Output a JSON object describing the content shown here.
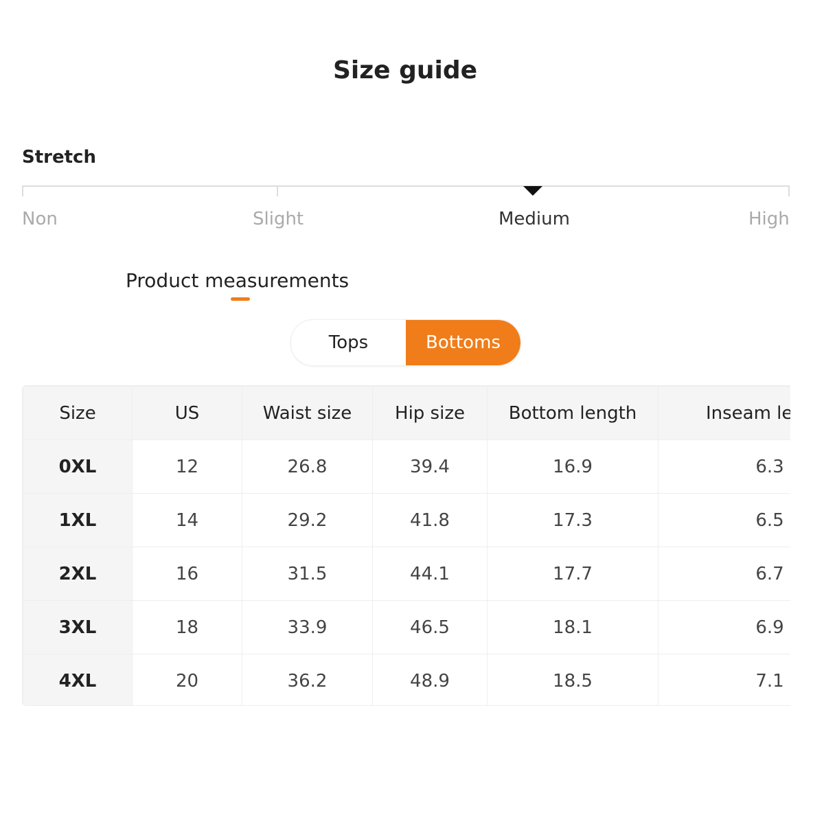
{
  "title": "Size guide",
  "stretch": {
    "label": "Stretch",
    "levels": [
      "Non",
      "Slight",
      "Medium",
      "High"
    ],
    "selected": "Medium",
    "selected_index": 2
  },
  "section": {
    "title": "Product measurements",
    "accent_color": "#f07d1a"
  },
  "tabs": [
    {
      "label": "Tops",
      "active": false
    },
    {
      "label": "Bottoms",
      "active": true
    }
  ],
  "table": {
    "headers": [
      "Size",
      "US",
      "Waist size",
      "Hip size",
      "Bottom length",
      "Inseam length"
    ],
    "rows": [
      [
        "0XL",
        "12",
        "26.8",
        "39.4",
        "16.9",
        "6.3"
      ],
      [
        "1XL",
        "14",
        "29.2",
        "41.8",
        "17.3",
        "6.5"
      ],
      [
        "2XL",
        "16",
        "31.5",
        "44.1",
        "17.7",
        "6.7"
      ],
      [
        "3XL",
        "18",
        "33.9",
        "46.5",
        "18.1",
        "6.9"
      ],
      [
        "4XL",
        "20",
        "36.2",
        "48.9",
        "18.5",
        "7.1"
      ]
    ]
  }
}
